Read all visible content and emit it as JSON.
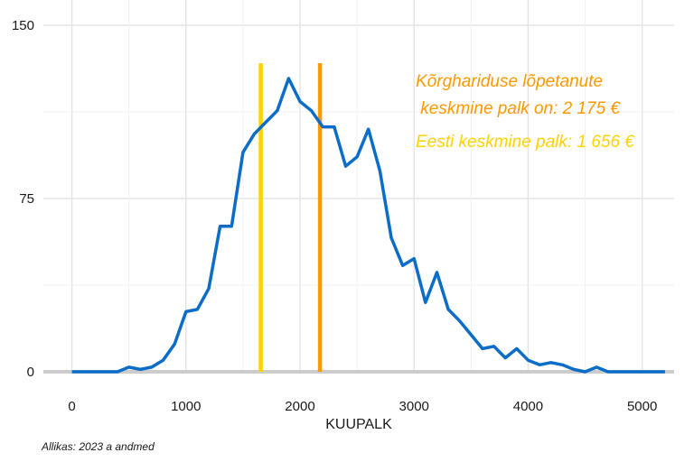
{
  "chart_data": {
    "type": "line",
    "x": [
      0,
      100,
      200,
      300,
      400,
      500,
      600,
      700,
      800,
      900,
      1000,
      1100,
      1200,
      1300,
      1400,
      1500,
      1600,
      1700,
      1800,
      1900,
      2000,
      2100,
      2200,
      2300,
      2400,
      2500,
      2600,
      2700,
      2800,
      2900,
      3000,
      3100,
      3200,
      3300,
      3400,
      3500,
      3600,
      3700,
      3800,
      3900,
      4000,
      4100,
      4200,
      4300,
      4400,
      4500,
      4600,
      4700,
      4800,
      4900,
      5000,
      5100,
      5200
    ],
    "series": [
      {
        "color": "#0c6dc9",
        "values": [
          0,
          0,
          0,
          0,
          0,
          2,
          1,
          2,
          5,
          12,
          26,
          27,
          36,
          63,
          63,
          95,
          103,
          108,
          113,
          127,
          117,
          113,
          106,
          106,
          89,
          93,
          105,
          87,
          58,
          46,
          49,
          30,
          43,
          27,
          22,
          16,
          10,
          11,
          6,
          10,
          5,
          3,
          4,
          3,
          1,
          0,
          2,
          0,
          0,
          0,
          0,
          0,
          0
        ]
      }
    ],
    "xticks": [
      "0",
      "1000",
      "2000",
      "3000",
      "4000",
      "5000"
    ],
    "yticks": [
      "0",
      "75",
      "150"
    ],
    "xlim": [
      -250,
      5280
    ],
    "ylim": [
      0,
      150
    ],
    "xlabel": "KUUPALK",
    "ylabel": "",
    "grid": true,
    "vlines": [
      {
        "x": 1656,
        "color": "#ffd200"
      },
      {
        "x": 2175,
        "color": "#ff9900"
      }
    ],
    "annotations": [
      {
        "line1": "Kõrghariduse lõpetanute",
        "line2": " keskmine palk on: 2 175 €",
        "color": "#ff9900"
      },
      {
        "text": "Eesti keskmine palk: 1 656 €",
        "color": "#ffd200"
      }
    ]
  },
  "caption": "Allikas: 2023 a andmed"
}
